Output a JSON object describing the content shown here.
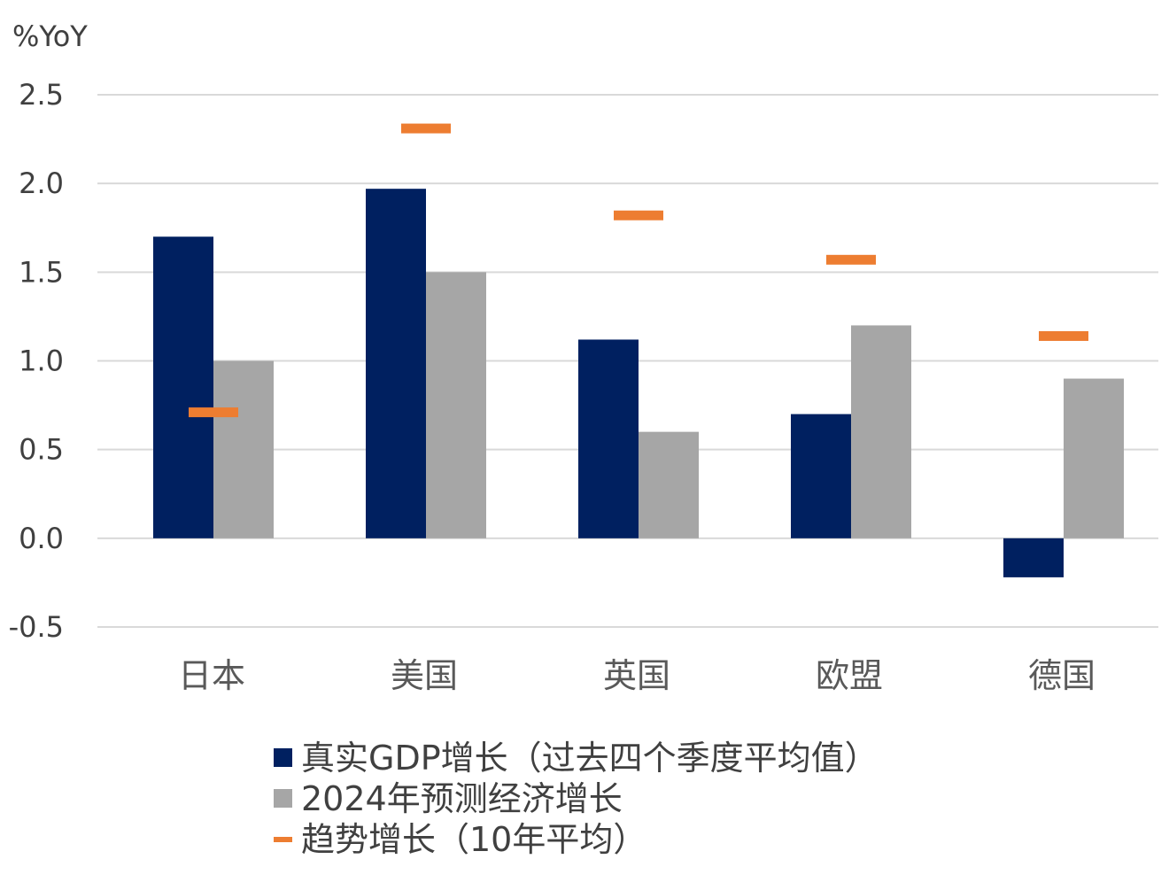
{
  "chart_data": {
    "type": "bar",
    "ylabel": "%YoY",
    "ylim": [
      -0.5,
      2.5
    ],
    "yticks": [
      "-0.5",
      "0.0",
      "0.5",
      "1.0",
      "1.5",
      "2.0",
      "2.5"
    ],
    "ytick_values": [
      -0.5,
      0.0,
      0.5,
      1.0,
      1.5,
      2.0,
      2.5
    ],
    "grid": true,
    "legend_position": "bottom",
    "categories": [
      "日本",
      "美国",
      "英国",
      "欧盟",
      "德国"
    ],
    "series": [
      {
        "name": "真实GDP增长（过去四个季度平均值）",
        "type": "bar",
        "color": "#002060",
        "values": [
          1.7,
          1.97,
          1.12,
          0.7,
          -0.22
        ]
      },
      {
        "name": "2024年预测经济增长",
        "type": "bar",
        "color": "#a6a6a6",
        "values": [
          1.0,
          1.5,
          0.6,
          1.2,
          0.9
        ]
      },
      {
        "name": "趋势增长（10年平均）",
        "type": "marker",
        "color": "#ed7d31",
        "values": [
          0.71,
          2.31,
          1.82,
          1.57,
          1.14
        ]
      }
    ]
  }
}
